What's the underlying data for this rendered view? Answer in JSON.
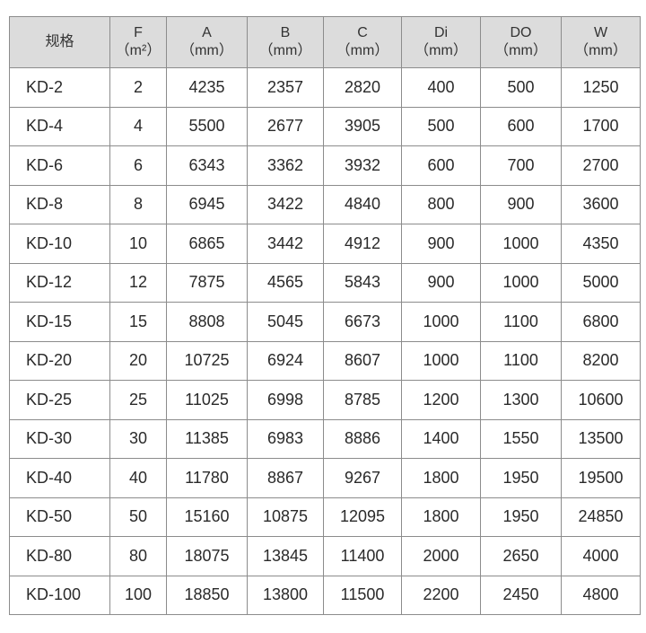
{
  "table": {
    "headers": [
      {
        "name": "规格",
        "unit": ""
      },
      {
        "name": "F",
        "unit": "（m²）"
      },
      {
        "name": "A",
        "unit": "（mm）"
      },
      {
        "name": "B",
        "unit": "（mm）"
      },
      {
        "name": "C",
        "unit": "（mm）"
      },
      {
        "name": "Di",
        "unit": "（mm）"
      },
      {
        "name": "DO",
        "unit": "（mm）"
      },
      {
        "name": "W",
        "unit": "（mm）"
      }
    ],
    "rows": [
      [
        "KD-2",
        "2",
        "4235",
        "2357",
        "2820",
        "400",
        "500",
        "1250"
      ],
      [
        "KD-4",
        "4",
        "5500",
        "2677",
        "3905",
        "500",
        "600",
        "1700"
      ],
      [
        "KD-6",
        "6",
        "6343",
        "3362",
        "3932",
        "600",
        "700",
        "2700"
      ],
      [
        "KD-8",
        "8",
        "6945",
        "3422",
        "4840",
        "800",
        "900",
        "3600"
      ],
      [
        "KD-10",
        "10",
        "6865",
        "3442",
        "4912",
        "900",
        "1000",
        "4350"
      ],
      [
        "KD-12",
        "12",
        "7875",
        "4565",
        "5843",
        "900",
        "1000",
        "5000"
      ],
      [
        "KD-15",
        "15",
        "8808",
        "5045",
        "6673",
        "1000",
        "1100",
        "6800"
      ],
      [
        "KD-20",
        "20",
        "10725",
        "6924",
        "8607",
        "1000",
        "1100",
        "8200"
      ],
      [
        "KD-25",
        "25",
        "11025",
        "6998",
        "8785",
        "1200",
        "1300",
        "10600"
      ],
      [
        "KD-30",
        "30",
        "11385",
        "6983",
        "8886",
        "1400",
        "1550",
        "13500"
      ],
      [
        "KD-40",
        "40",
        "11780",
        "8867",
        "9267",
        "1800",
        "1950",
        "19500"
      ],
      [
        "KD-50",
        "50",
        "15160",
        "10875",
        "12095",
        "1800",
        "1950",
        "24850"
      ],
      [
        "KD-80",
        "80",
        "18075",
        "13845",
        "11400",
        "2000",
        "2650",
        "4000"
      ],
      [
        "KD-100",
        "100",
        "18850",
        "13800",
        "11500",
        "2200",
        "2450",
        "4800"
      ]
    ]
  }
}
